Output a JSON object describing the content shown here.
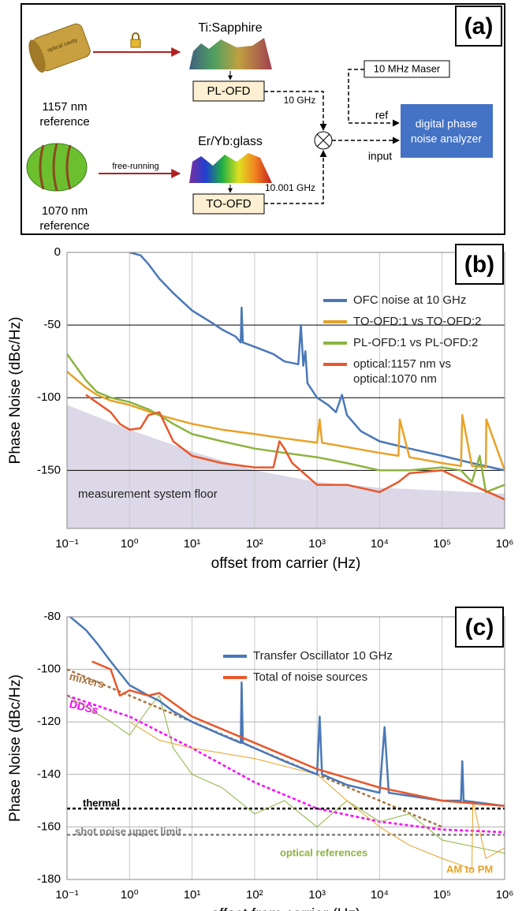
{
  "diagram": {
    "label": "(a)",
    "cavity_label": "optical cavity",
    "source_1157": [
      "1157 nm",
      "reference"
    ],
    "laser_1": "Ti:Sapphire",
    "ofd_1": "PL-OFD",
    "freq_1": "10 GHz",
    "source_1070": [
      "1070 nm",
      "reference"
    ],
    "link_2": "free-running",
    "laser_2": "Er/Yb:glass",
    "ofd_2": "TO-OFD",
    "freq_2": "10.001 GHz",
    "maser": "10 MHz Maser",
    "ref_port": "ref",
    "input_port": "input",
    "analyzer": [
      "digital phase",
      "noise analyzer"
    ]
  },
  "chart_data": [
    {
      "type": "line",
      "label": "(b)",
      "xlabel": "offset from carrier (Hz)",
      "ylabel": "Phase Noise (dBc/Hz)",
      "xscale": "log",
      "xlim": [
        0.1,
        1000000
      ],
      "ylim": [
        -190,
        0
      ],
      "xticks": [
        {
          "value": 0.1,
          "label": "10⁻¹"
        },
        {
          "value": 1,
          "label": "10⁰"
        },
        {
          "value": 10,
          "label": "10¹"
        },
        {
          "value": 100,
          "label": "10²"
        },
        {
          "value": 1000,
          "label": "10³"
        },
        {
          "value": 10000,
          "label": "10⁴"
        },
        {
          "value": 100000,
          "label": "10⁵"
        },
        {
          "value": 1000000,
          "label": "10⁶"
        }
      ],
      "yticks": [
        0,
        -50,
        -100,
        -150
      ],
      "grid": true,
      "legend": "upper right",
      "floor": {
        "label": "measurement system floor",
        "color": "#dcd8e8",
        "x": [
          0.1,
          1,
          10,
          100,
          1000,
          10000,
          1000000
        ],
        "values": [
          -105,
          -122,
          -137,
          -150,
          -158,
          -162,
          -166
        ]
      },
      "series": [
        {
          "name": "OFC noise at 10 GHz",
          "color": "#4a78b8",
          "x": [
            1,
            1.5,
            2,
            3,
            5,
            10,
            20,
            30,
            50,
            60,
            62,
            65,
            100,
            200,
            300,
            500,
            550,
            600,
            650,
            700,
            1000,
            1500,
            2000,
            2500,
            3000,
            5000,
            10000,
            30000,
            100000,
            300000,
            1000000
          ],
          "values": [
            0,
            -2,
            -8,
            -18,
            -28,
            -40,
            -48,
            -53,
            -58,
            -62,
            -38,
            -62,
            -65,
            -70,
            -75,
            -77,
            -50,
            -78,
            -68,
            -90,
            -100,
            -105,
            -110,
            -98,
            -112,
            -123,
            -130,
            -135,
            -140,
            -145,
            -150
          ]
        },
        {
          "name": "TO-OFD:1 vs TO-OFD:2",
          "color": "#e8a228",
          "x": [
            0.1,
            0.2,
            0.3,
            0.5,
            1,
            3,
            10,
            30,
            100,
            300,
            1000,
            1100,
            1200,
            3000,
            10000,
            20000,
            21000,
            30000,
            100000,
            200000,
            210000,
            300000,
            500000,
            510000,
            1000000
          ],
          "values": [
            -82,
            -93,
            -98,
            -102,
            -105,
            -112,
            -118,
            -122,
            -125,
            -128,
            -131,
            -115,
            -131,
            -134,
            -138,
            -140,
            -115,
            -141,
            -145,
            -147,
            -112,
            -147,
            -148,
            -115,
            -150
          ]
        },
        {
          "name": "PL-OFD:1 vs PL-OFD:2",
          "color": "#8cb440",
          "x": [
            0.1,
            0.2,
            0.3,
            0.5,
            1,
            2,
            3,
            5,
            10,
            30,
            100,
            300,
            1000,
            3000,
            10000,
            30000,
            100000,
            200000,
            300000,
            400000,
            500000,
            1000000
          ],
          "values": [
            -70,
            -88,
            -96,
            -100,
            -103,
            -108,
            -112,
            -118,
            -125,
            -130,
            -135,
            -138,
            -141,
            -145,
            -150,
            -150,
            -148,
            -150,
            -158,
            -140,
            -165,
            -160
          ]
        },
        {
          "name": "optical:1157 nm vs optical:1070 nm",
          "color": "#e8582c",
          "x": [
            0.2,
            0.5,
            0.7,
            1,
            1.5,
            2,
            3,
            5,
            10,
            30,
            100,
            200,
            250,
            300,
            400,
            1000,
            3000,
            10000,
            20000,
            30000,
            100000,
            300000,
            1000000
          ],
          "values": [
            -98,
            -110,
            -118,
            -122,
            -121,
            -112,
            -110,
            -130,
            -140,
            -145,
            -148,
            -148,
            -130,
            -135,
            -145,
            -160,
            -160,
            -165,
            -158,
            -152,
            -150,
            -160,
            -170
          ]
        }
      ]
    },
    {
      "type": "line",
      "label": "(c)",
      "xlabel": "offset from carrier (Hz)",
      "ylabel": "Phase Noise (dBc/Hz)",
      "xscale": "log",
      "xlim": [
        0.1,
        1000000
      ],
      "ylim": [
        -180,
        -80
      ],
      "xticks": [
        {
          "value": 0.1,
          "label": "10⁻¹"
        },
        {
          "value": 1,
          "label": "10⁰"
        },
        {
          "value": 10,
          "label": "10¹"
        },
        {
          "value": 100,
          "label": "10²"
        },
        {
          "value": 1000,
          "label": "10³"
        },
        {
          "value": 10000,
          "label": "10⁴"
        },
        {
          "value": 100000,
          "label": "10⁵"
        },
        {
          "value": 1000000,
          "label": "10⁶"
        }
      ],
      "yticks": [
        -80,
        -100,
        -120,
        -140,
        -160,
        -180
      ],
      "grid": true,
      "legend": "upper center",
      "curves": [
        {
          "name": "mixers",
          "color": "#a87440",
          "dashed": true,
          "x": [
            0.1,
            100000
          ],
          "values": [
            -100,
            -160
          ]
        },
        {
          "name": "DDSs",
          "color": "#ff00ff",
          "dashed": true,
          "x": [
            0.1,
            1,
            10,
            100,
            1000,
            10000,
            100000,
            1000000
          ],
          "values": [
            -110,
            -118,
            -130,
            -143,
            -153,
            -158,
            -161,
            -162
          ]
        },
        {
          "name": "thermal",
          "color": "#000000",
          "dashed": true,
          "x": [
            0.1,
            1000000
          ],
          "values": [
            -153,
            -153
          ]
        },
        {
          "name": "shot noise upper limit",
          "color": "#808080",
          "dashed": true,
          "x": [
            0.1,
            1000000
          ],
          "values": [
            -163,
            -163
          ]
        },
        {
          "name": "optical references",
          "color": "#8cb440",
          "dashed": false,
          "x": [
            0.1,
            0.5,
            1,
            2,
            3,
            5,
            10,
            30,
            100,
            300,
            1000,
            3000,
            10000,
            30000,
            100000,
            1000000
          ],
          "values": [
            -110,
            -120,
            -125,
            -115,
            -110,
            -130,
            -140,
            -145,
            -155,
            -150,
            -160,
            -150,
            -158,
            -155,
            -165,
            -170
          ]
        },
        {
          "name": "AM to PM",
          "color": "#e8a228",
          "dashed": false,
          "x": [
            1,
            3,
            10,
            100,
            1000,
            3000,
            10000,
            30000,
            100000,
            300000,
            310000,
            500000,
            1000000
          ],
          "values": [
            -120,
            -127,
            -130,
            -134,
            -140,
            -150,
            -160,
            -167,
            -172,
            -176,
            -150,
            -172,
            -168
          ]
        }
      ],
      "series": [
        {
          "name": "Transfer Oscillator 10 GHz",
          "color": "#4a78b8",
          "x": [
            0.1,
            0.2,
            0.3,
            0.5,
            1,
            2,
            3,
            5,
            10,
            30,
            60,
            62,
            65,
            100,
            300,
            1000,
            1100,
            1200,
            3000,
            10000,
            12000,
            14000,
            100000,
            200000,
            210000,
            220000,
            1000000
          ],
          "values": [
            -79,
            -85,
            -90,
            -97,
            -106,
            -110,
            -112,
            -116,
            -120,
            -125,
            -128,
            -105,
            -128,
            -130,
            -135,
            -140,
            -118,
            -140,
            -144,
            -147,
            -122,
            -147,
            -150,
            -150,
            -135,
            -150,
            -152
          ]
        },
        {
          "name": "Total of noise sources",
          "color": "#e8582c",
          "x": [
            0.25,
            0.5,
            0.7,
            1,
            2,
            3,
            10,
            100,
            1000,
            10000,
            100000,
            300000,
            1000000
          ],
          "values": [
            -97,
            -100,
            -110,
            -108,
            -110,
            -109,
            -118,
            -128,
            -138,
            -145,
            -150,
            -151,
            -152
          ]
        }
      ]
    }
  ]
}
